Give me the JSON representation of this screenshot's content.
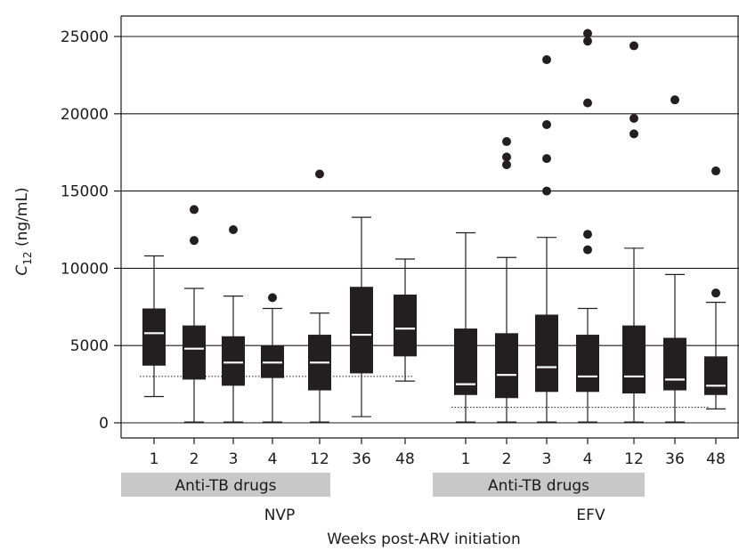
{
  "chart_data": {
    "type": "boxplot",
    "ylabel": {
      "main": "C",
      "sub": "12",
      "unit": " (ng/mL)"
    },
    "xlabel": "Weeks post-ARV initiation",
    "ylim": [
      0,
      26000
    ],
    "yticks": [
      0,
      5000,
      10000,
      15000,
      20000,
      25000
    ],
    "grid": "horizontal major lines",
    "colors": {
      "box": "#231f20",
      "median": "#ffffff",
      "band": "#c8c8c8",
      "axis": "#1a1a1a"
    },
    "groups": [
      {
        "name": "NVP",
        "band_label": "Anti-TB drugs",
        "band_weeks": [
          "1",
          "2",
          "3",
          "4",
          "12"
        ],
        "reference_line": 3000,
        "boxes": [
          {
            "week": "1",
            "whisker_low": 1700,
            "q1": 3700,
            "median": 5800,
            "q3": 7400,
            "whisker_high": 10800,
            "outliers": []
          },
          {
            "week": "2",
            "whisker_low": 50,
            "q1": 2800,
            "median": 4800,
            "q3": 6300,
            "whisker_high": 8700,
            "outliers": [
              11800,
              13800
            ]
          },
          {
            "week": "3",
            "whisker_low": 50,
            "q1": 2400,
            "median": 3900,
            "q3": 5600,
            "whisker_high": 8200,
            "outliers": [
              12500
            ]
          },
          {
            "week": "4",
            "whisker_low": 50,
            "q1": 2900,
            "median": 3900,
            "q3": 5000,
            "whisker_high": 7400,
            "outliers": [
              8100
            ]
          },
          {
            "week": "12",
            "whisker_low": 50,
            "q1": 2100,
            "median": 3900,
            "q3": 5700,
            "whisker_high": 7100,
            "outliers": [
              16100
            ]
          },
          {
            "week": "36",
            "whisker_low": 400,
            "q1": 3200,
            "median": 5700,
            "q3": 8800,
            "whisker_high": 13300,
            "outliers": []
          },
          {
            "week": "48",
            "whisker_low": 2700,
            "q1": 4300,
            "median": 6100,
            "q3": 8300,
            "whisker_high": 10600,
            "outliers": []
          }
        ]
      },
      {
        "name": "EFV",
        "band_label": "Anti-TB drugs",
        "band_weeks": [
          "1",
          "2",
          "3",
          "4",
          "12"
        ],
        "reference_line": 1000,
        "boxes": [
          {
            "week": "1",
            "whisker_low": 50,
            "q1": 1800,
            "median": 2500,
            "q3": 6100,
            "whisker_high": 12300,
            "outliers": []
          },
          {
            "week": "2",
            "whisker_low": 50,
            "q1": 1600,
            "median": 3100,
            "q3": 5800,
            "whisker_high": 10700,
            "outliers": [
              16700,
              17200,
              18200
            ]
          },
          {
            "week": "3",
            "whisker_low": 50,
            "q1": 2000,
            "median": 3600,
            "q3": 7000,
            "whisker_high": 12000,
            "outliers": [
              15000,
              17100,
              19300,
              23500
            ]
          },
          {
            "week": "4",
            "whisker_low": 50,
            "q1": 2000,
            "median": 3000,
            "q3": 5700,
            "whisker_high": 7400,
            "outliers": [
              11200,
              12200,
              20700,
              24700,
              25200
            ]
          },
          {
            "week": "12",
            "whisker_low": 50,
            "q1": 1900,
            "median": 3000,
            "q3": 6300,
            "whisker_high": 11300,
            "outliers": [
              18700,
              19700,
              24400
            ]
          },
          {
            "week": "36",
            "whisker_low": 50,
            "q1": 2100,
            "median": 2800,
            "q3": 5500,
            "whisker_high": 9600,
            "outliers": [
              20900
            ]
          },
          {
            "week": "48",
            "whisker_low": 900,
            "q1": 1800,
            "median": 2400,
            "q3": 4300,
            "whisker_high": 7800,
            "outliers": [
              8400,
              16300
            ]
          }
        ]
      }
    ]
  }
}
